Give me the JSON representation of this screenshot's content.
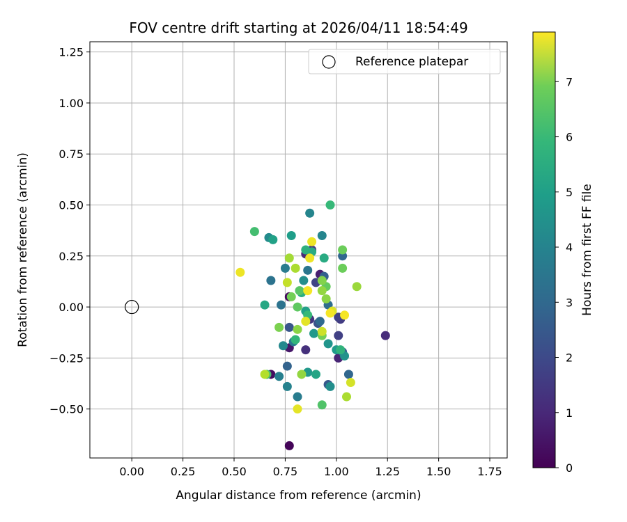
{
  "chart_data": {
    "type": "scatter",
    "title": "FOV centre drift starting at 2026/04/11 18:54:49",
    "xlabel": "Angular distance from reference (arcmin)",
    "ylabel": "Rotation from reference (arcmin)",
    "xlim": [
      -0.205,
      1.835
    ],
    "ylim": [
      -0.74,
      1.3
    ],
    "xticks": [
      0.0,
      0.25,
      0.5,
      0.75,
      1.0,
      1.25,
      1.5,
      1.75
    ],
    "xtick_labels": [
      "0.00",
      "0.25",
      "0.50",
      "0.75",
      "1.00",
      "1.25",
      "1.50",
      "1.75"
    ],
    "yticks": [
      -0.5,
      -0.25,
      0.0,
      0.25,
      0.5,
      0.75,
      1.0,
      1.25
    ],
    "ytick_labels": [
      "−0.50",
      "−0.25",
      "0.00",
      "0.25",
      "0.50",
      "0.75",
      "1.00",
      "1.25"
    ],
    "grid": true,
    "legend": {
      "location": "upper right",
      "entries": [
        "Reference platepar"
      ]
    },
    "reference_point": {
      "x": 0.0,
      "y": 0.0,
      "label": "Reference platepar"
    },
    "colorbar": {
      "label": "Hours from first FF file",
      "range": [
        0,
        7.9
      ],
      "ticks": [
        0,
        1,
        2,
        3,
        4,
        5,
        6,
        7
      ],
      "tick_labels": [
        "0",
        "1",
        "2",
        "3",
        "4",
        "5",
        "6",
        "7"
      ],
      "colormap": "viridis"
    },
    "points": [
      {
        "x": 0.77,
        "y": -0.68,
        "h": 0.1
      },
      {
        "x": 0.68,
        "y": -0.33,
        "h": 0.3
      },
      {
        "x": 0.77,
        "y": 0.05,
        "h": 0.2
      },
      {
        "x": 0.77,
        "y": -0.2,
        "h": 0.5
      },
      {
        "x": 1.24,
        "y": -0.14,
        "h": 1.0
      },
      {
        "x": 1.01,
        "y": -0.25,
        "h": 0.8
      },
      {
        "x": 0.92,
        "y": 0.16,
        "h": 0.7
      },
      {
        "x": 0.85,
        "y": 0.26,
        "h": 0.9
      },
      {
        "x": 0.87,
        "y": -0.06,
        "h": 1.2
      },
      {
        "x": 0.85,
        "y": -0.21,
        "h": 1.1
      },
      {
        "x": 1.02,
        "y": -0.06,
        "h": 1.4
      },
      {
        "x": 1.01,
        "y": -0.14,
        "h": 1.5
      },
      {
        "x": 0.88,
        "y": 0.28,
        "h": 1.3
      },
      {
        "x": 0.9,
        "y": 0.12,
        "h": 1.6
      },
      {
        "x": 1.01,
        "y": -0.05,
        "h": 1.5
      },
      {
        "x": 0.91,
        "y": -0.08,
        "h": 2.0
      },
      {
        "x": 0.96,
        "y": -0.38,
        "h": 2.2
      },
      {
        "x": 0.76,
        "y": -0.29,
        "h": 2.5
      },
      {
        "x": 1.03,
        "y": -0.22,
        "h": 2.3
      },
      {
        "x": 0.94,
        "y": 0.15,
        "h": 2.4
      },
      {
        "x": 0.77,
        "y": -0.1,
        "h": 2.1
      },
      {
        "x": 1.03,
        "y": 0.25,
        "h": 2.6
      },
      {
        "x": 0.92,
        "y": -0.07,
        "h": 2.7
      },
      {
        "x": 0.96,
        "y": 0.01,
        "h": 2.8
      },
      {
        "x": 1.06,
        "y": -0.33,
        "h": 2.6
      },
      {
        "x": 0.68,
        "y": 0.13,
        "h": 3.0
      },
      {
        "x": 0.86,
        "y": 0.18,
        "h": 3.1
      },
      {
        "x": 0.79,
        "y": -0.17,
        "h": 3.2
      },
      {
        "x": 0.81,
        "y": -0.44,
        "h": 3.3
      },
      {
        "x": 0.73,
        "y": 0.01,
        "h": 3.0
      },
      {
        "x": 0.75,
        "y": 0.19,
        "h": 3.3
      },
      {
        "x": 0.72,
        "y": -0.34,
        "h": 3.4
      },
      {
        "x": 0.76,
        "y": -0.39,
        "h": 3.5
      },
      {
        "x": 0.87,
        "y": 0.46,
        "h": 3.6
      },
      {
        "x": 0.93,
        "y": 0.35,
        "h": 3.6
      },
      {
        "x": 0.67,
        "y": 0.34,
        "h": 3.8
      },
      {
        "x": 0.74,
        "y": -0.19,
        "h": 3.7
      },
      {
        "x": 0.84,
        "y": 0.13,
        "h": 3.9
      },
      {
        "x": 0.97,
        "y": -0.39,
        "h": 3.9
      },
      {
        "x": 1.04,
        "y": -0.24,
        "h": 4.0
      },
      {
        "x": 0.96,
        "y": -0.18,
        "h": 4.1
      },
      {
        "x": 0.89,
        "y": -0.13,
        "h": 4.2
      },
      {
        "x": 0.86,
        "y": -0.32,
        "h": 4.2
      },
      {
        "x": 1.0,
        "y": -0.21,
        "h": 4.3
      },
      {
        "x": 0.78,
        "y": 0.35,
        "h": 4.4
      },
      {
        "x": 0.69,
        "y": 0.33,
        "h": 4.5
      },
      {
        "x": 0.85,
        "y": -0.02,
        "h": 4.5
      },
      {
        "x": 0.9,
        "y": -0.33,
        "h": 4.6
      },
      {
        "x": 0.65,
        "y": 0.01,
        "h": 4.7
      },
      {
        "x": 0.88,
        "y": 0.27,
        "h": 4.8
      },
      {
        "x": 0.94,
        "y": 0.24,
        "h": 4.8
      },
      {
        "x": 0.83,
        "y": 0.07,
        "h": 4.9
      },
      {
        "x": 0.85,
        "y": 0.28,
        "h": 5.0
      },
      {
        "x": 0.97,
        "y": 0.5,
        "h": 5.3
      },
      {
        "x": 1.02,
        "y": -0.21,
        "h": 5.1
      },
      {
        "x": 0.8,
        "y": -0.16,
        "h": 5.2
      },
      {
        "x": 0.86,
        "y": -0.04,
        "h": 5.3
      },
      {
        "x": 0.6,
        "y": 0.37,
        "h": 5.5
      },
      {
        "x": 0.66,
        "y": -0.33,
        "h": 5.6
      },
      {
        "x": 0.93,
        "y": -0.48,
        "h": 5.7
      },
      {
        "x": 0.82,
        "y": 0.08,
        "h": 5.8
      },
      {
        "x": 0.81,
        "y": 0.0,
        "h": 5.9
      },
      {
        "x": 0.95,
        "y": 0.1,
        "h": 6.0
      },
      {
        "x": 1.03,
        "y": 0.19,
        "h": 6.1
      },
      {
        "x": 1.03,
        "y": 0.28,
        "h": 6.1
      },
      {
        "x": 0.93,
        "y": -0.14,
        "h": 6.2
      },
      {
        "x": 0.72,
        "y": -0.1,
        "h": 6.3
      },
      {
        "x": 0.78,
        "y": 0.05,
        "h": 6.2
      },
      {
        "x": 0.93,
        "y": 0.13,
        "h": 6.4
      },
      {
        "x": 0.81,
        "y": -0.11,
        "h": 6.5
      },
      {
        "x": 0.95,
        "y": 0.04,
        "h": 6.5
      },
      {
        "x": 0.83,
        "y": -0.33,
        "h": 6.6
      },
      {
        "x": 1.1,
        "y": 0.1,
        "h": 6.7
      },
      {
        "x": 0.93,
        "y": 0.08,
        "h": 6.6
      },
      {
        "x": 0.77,
        "y": 0.24,
        "h": 6.8
      },
      {
        "x": 1.05,
        "y": -0.44,
        "h": 6.9
      },
      {
        "x": 0.8,
        "y": 0.19,
        "h": 6.9
      },
      {
        "x": 0.65,
        "y": -0.33,
        "h": 7.0
      },
      {
        "x": 0.76,
        "y": 0.12,
        "h": 7.2
      },
      {
        "x": 1.07,
        "y": -0.37,
        "h": 7.4
      },
      {
        "x": 0.93,
        "y": -0.12,
        "h": 7.3
      },
      {
        "x": 0.98,
        "y": -0.02,
        "h": 7.5
      },
      {
        "x": 0.81,
        "y": -0.5,
        "h": 7.6
      },
      {
        "x": 0.53,
        "y": 0.17,
        "h": 7.7
      },
      {
        "x": 0.88,
        "y": 0.32,
        "h": 7.7
      },
      {
        "x": 0.86,
        "y": 0.08,
        "h": 7.8
      },
      {
        "x": 0.85,
        "y": -0.07,
        "h": 7.6
      },
      {
        "x": 1.04,
        "y": -0.04,
        "h": 7.8
      },
      {
        "x": 0.97,
        "y": -0.03,
        "h": 7.8
      },
      {
        "x": 0.87,
        "y": 0.24,
        "h": 7.7
      }
    ]
  }
}
